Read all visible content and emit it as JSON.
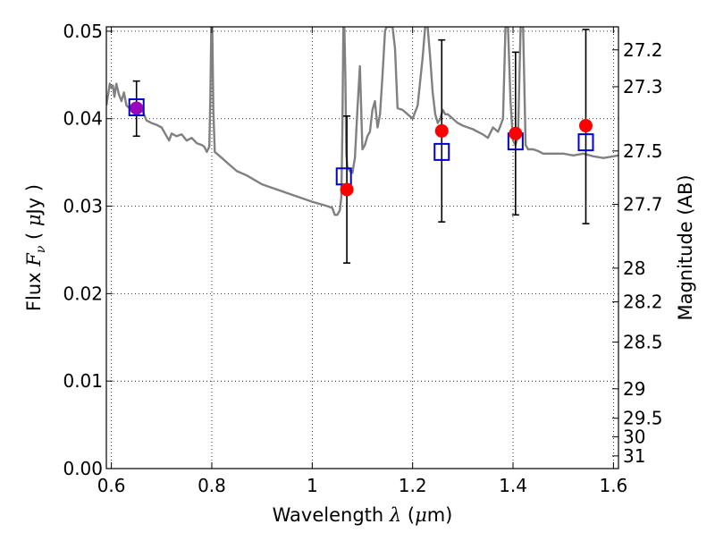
{
  "chart_data": {
    "type": "scatter",
    "xlabel": {
      "prefix": "Wavelength  ",
      "symbol": "λ",
      "open": " (",
      "unit_sym": "μ",
      "unit": "m)"
    },
    "ylabel": {
      "prefix": "Flux  ",
      "symbol": "F",
      "sub": "ν",
      "open": "  ( ",
      "unit_sym": "μ",
      "unit": "Jy )"
    },
    "y2label": "Magnitude (AB)",
    "xlim": [
      0.59,
      1.61
    ],
    "ylim": [
      0.0,
      0.0505
    ],
    "x_ticks": [
      {
        "v": 0.6,
        "label": "0.6"
      },
      {
        "v": 0.8,
        "label": "0.8"
      },
      {
        "v": 1.0,
        "label": "1"
      },
      {
        "v": 1.2,
        "label": "1.2"
      },
      {
        "v": 1.4,
        "label": "1.4"
      },
      {
        "v": 1.6,
        "label": "1.6"
      }
    ],
    "y_ticks": [
      {
        "v": 0.0,
        "label": "0.00"
      },
      {
        "v": 0.01,
        "label": "0.01"
      },
      {
        "v": 0.02,
        "label": "0.02"
      },
      {
        "v": 0.03,
        "label": "0.03"
      },
      {
        "v": 0.04,
        "label": "0.04"
      },
      {
        "v": 0.05,
        "label": "0.05"
      }
    ],
    "y2_ticks": [
      {
        "mag": 27.2,
        "label": "27.2"
      },
      {
        "mag": 27.3,
        "label": "27.3"
      },
      {
        "mag": 27.5,
        "label": "27.5"
      },
      {
        "mag": 27.7,
        "label": "27.7"
      },
      {
        "mag": 28.0,
        "label": "28"
      },
      {
        "mag": 28.2,
        "label": "28.2"
      },
      {
        "mag": 28.5,
        "label": "28.5"
      },
      {
        "mag": 29.0,
        "label": "29"
      },
      {
        "mag": 29.5,
        "label": "29.5"
      },
      {
        "mag": 30.0,
        "label": "30"
      },
      {
        "mag": 31.0,
        "label": "31"
      }
    ],
    "grid": true,
    "series": [
      {
        "kind": "line",
        "color": "#808080",
        "x": [
          0.59,
          0.597,
          0.6,
          0.603,
          0.606,
          0.61,
          0.615,
          0.62,
          0.625,
          0.63,
          0.64,
          0.65,
          0.66,
          0.67,
          0.68,
          0.69,
          0.7,
          0.71,
          0.715,
          0.72,
          0.73,
          0.74,
          0.75,
          0.76,
          0.77,
          0.78,
          0.785,
          0.79,
          0.795,
          0.797,
          0.799,
          0.801,
          0.803,
          0.806,
          0.81,
          0.82,
          0.83,
          0.84,
          0.85,
          0.87,
          0.9,
          0.95,
          1.0,
          1.03,
          1.04,
          1.045,
          1.05,
          1.055,
          1.058,
          1.06,
          1.062,
          1.064,
          1.066,
          1.068,
          1.07,
          1.075,
          1.08,
          1.085,
          1.09,
          1.095,
          1.1,
          1.105,
          1.11,
          1.115,
          1.12,
          1.125,
          1.13,
          1.135,
          1.14,
          1.145,
          1.148,
          1.15,
          1.155,
          1.16,
          1.165,
          1.17,
          1.18,
          1.19,
          1.2,
          1.21,
          1.22,
          1.225,
          1.23,
          1.235,
          1.24,
          1.245,
          1.25,
          1.255,
          1.26,
          1.265,
          1.27,
          1.28,
          1.29,
          1.3,
          1.32,
          1.34,
          1.35,
          1.36,
          1.37,
          1.375,
          1.38,
          1.385,
          1.39,
          1.395,
          1.4,
          1.405,
          1.41,
          1.415,
          1.42,
          1.425,
          1.43,
          1.44,
          1.45,
          1.46,
          1.48,
          1.5,
          1.52,
          1.54,
          1.56,
          1.58,
          1.6,
          1.61
        ],
        "y": [
          0.0415,
          0.044,
          0.0435,
          0.0438,
          0.0425,
          0.044,
          0.0428,
          0.042,
          0.043,
          0.0415,
          0.041,
          0.0405,
          0.0412,
          0.0398,
          0.0395,
          0.0393,
          0.039,
          0.038,
          0.0375,
          0.0383,
          0.038,
          0.0382,
          0.0375,
          0.0378,
          0.0372,
          0.037,
          0.0368,
          0.0362,
          0.0368,
          0.042,
          0.0505,
          0.0505,
          0.041,
          0.0362,
          0.036,
          0.0355,
          0.035,
          0.0345,
          0.034,
          0.0335,
          0.0325,
          0.0315,
          0.0305,
          0.03,
          0.0298,
          0.029,
          0.029,
          0.0295,
          0.031,
          0.038,
          0.0505,
          0.0505,
          0.045,
          0.036,
          0.0345,
          0.034,
          0.0338,
          0.0355,
          0.041,
          0.046,
          0.0365,
          0.037,
          0.038,
          0.0385,
          0.041,
          0.042,
          0.039,
          0.0405,
          0.045,
          0.05,
          0.0505,
          0.0505,
          0.0505,
          0.0505,
          0.048,
          0.0412,
          0.041,
          0.0405,
          0.04,
          0.0415,
          0.047,
          0.0505,
          0.0505,
          0.047,
          0.043,
          0.0405,
          0.0395,
          0.04,
          0.041,
          0.0405,
          0.0405,
          0.04,
          0.0395,
          0.0392,
          0.0388,
          0.0382,
          0.0378,
          0.039,
          0.0385,
          0.0392,
          0.04,
          0.0505,
          0.0505,
          0.042,
          0.0375,
          0.037,
          0.038,
          0.0505,
          0.0505,
          0.037,
          0.0365,
          0.0365,
          0.0363,
          0.036,
          0.036,
          0.036,
          0.0358,
          0.036,
          0.0357,
          0.0355,
          0.0357,
          0.0358
        ]
      },
      {
        "kind": "errorbar",
        "color": "#000000",
        "points": [
          {
            "x": 0.65,
            "y": 0.0413,
            "lo": 0.038,
            "hi": 0.0443
          },
          {
            "x": 1.069,
            "y": 0.0319,
            "lo": 0.0235,
            "hi": 0.0403
          },
          {
            "x": 1.258,
            "y": 0.0386,
            "lo": 0.0282,
            "hi": 0.049
          },
          {
            "x": 1.405,
            "y": 0.0383,
            "lo": 0.029,
            "hi": 0.0476
          },
          {
            "x": 1.545,
            "y": 0.0392,
            "lo": 0.028,
            "hi": 0.0502
          }
        ]
      },
      {
        "kind": "square",
        "color": "#0000cc",
        "points": [
          {
            "x": 0.65,
            "y": 0.0413
          },
          {
            "x": 1.063,
            "y": 0.0334
          },
          {
            "x": 1.258,
            "y": 0.0362
          },
          {
            "x": 1.405,
            "y": 0.0374
          },
          {
            "x": 1.545,
            "y": 0.0373
          }
        ]
      },
      {
        "kind": "circle",
        "color": "#ff0000",
        "overlap_color": "#9900bb",
        "points": [
          {
            "x": 0.65,
            "y": 0.0412,
            "overlap": true
          },
          {
            "x": 1.069,
            "y": 0.0319
          },
          {
            "x": 1.258,
            "y": 0.0386
          },
          {
            "x": 1.405,
            "y": 0.0383
          },
          {
            "x": 1.545,
            "y": 0.0392
          }
        ]
      }
    ]
  }
}
